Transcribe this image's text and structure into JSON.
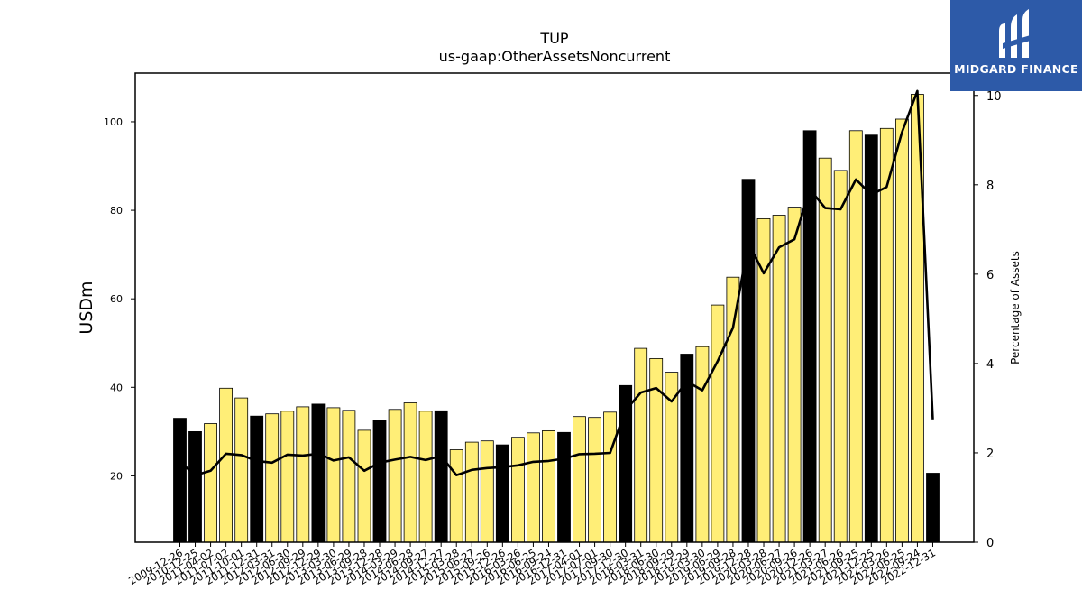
{
  "chart_data": {
    "type": "bar",
    "title": "TUP",
    "subtitle": "us-gaap:OtherAssetsNoncurrent",
    "ylabel": "USDm",
    "y2label": "Percentage of Assets",
    "ylim": [
      5,
      111
    ],
    "y2lim": [
      0,
      10.5
    ],
    "yticks": [
      20,
      40,
      60,
      80,
      100
    ],
    "y2ticks": [
      0,
      2,
      4,
      6,
      8,
      10
    ],
    "categories": [
      "2009-12-26",
      "2010-12-25",
      "2011-04-02",
      "2011-07-02",
      "2011-10-01",
      "2011-12-31",
      "2012-03-31",
      "2012-06-30",
      "2012-09-29",
      "2012-12-29",
      "2013-03-30",
      "2013-06-29",
      "2013-09-28",
      "2013-12-28",
      "2014-03-29",
      "2014-06-28",
      "2014-09-27",
      "2014-12-27",
      "2015-03-28",
      "2015-06-27",
      "2015-09-26",
      "2015-12-26",
      "2016-03-26",
      "2016-06-25",
      "2016-09-24",
      "2016-12-31",
      "2017-04-01",
      "2017-07-01",
      "2017-09-30",
      "2017-12-30",
      "2018-03-31",
      "2018-06-30",
      "2018-09-29",
      "2018-12-29",
      "2019-03-30",
      "2019-06-29",
      "2019-09-28",
      "2019-12-28",
      "2020-03-28",
      "2020-06-27",
      "2020-09-26",
      "2020-12-26",
      "2021-03-27",
      "2021-06-26",
      "2021-09-25",
      "2021-12-25",
      "2022-03-26",
      "2022-06-25",
      "2022-09-24",
      "2022-12-31"
    ],
    "series": [
      {
        "name": "",
        "type": "bar",
        "values": [
          33.0,
          30.0,
          31.8,
          39.8,
          37.6,
          33.5,
          34.0,
          34.6,
          35.6,
          36.2,
          35.4,
          34.8,
          30.3,
          32.5,
          35.0,
          36.5,
          34.6,
          34.7,
          25.9,
          27.6,
          27.9,
          27.0,
          28.7,
          29.7,
          30.2,
          29.8,
          33.4,
          33.2,
          34.4,
          40.4,
          48.8,
          46.5,
          43.4,
          47.5,
          49.2,
          58.6,
          64.9,
          87.0,
          78.1,
          78.9,
          80.7,
          98.0,
          91.8,
          89.0,
          98.0,
          97.0,
          98.5,
          100.6,
          106.2,
          20.6
        ],
        "highlight": [
          true,
          true,
          false,
          false,
          false,
          true,
          false,
          false,
          false,
          true,
          false,
          false,
          false,
          true,
          false,
          false,
          false,
          true,
          false,
          false,
          false,
          true,
          false,
          false,
          false,
          true,
          false,
          false,
          false,
          true,
          false,
          false,
          false,
          true,
          false,
          false,
          false,
          true,
          false,
          false,
          false,
          true,
          false,
          false,
          false,
          true,
          false,
          false,
          false,
          true
        ]
      },
      {
        "name": "",
        "type": "line",
        "axis": "right",
        "values": [
          1.8,
          1.5,
          1.6,
          1.98,
          1.95,
          1.82,
          1.78,
          1.96,
          1.94,
          1.98,
          1.83,
          1.9,
          1.6,
          1.78,
          1.85,
          1.91,
          1.84,
          1.93,
          1.5,
          1.62,
          1.66,
          1.68,
          1.72,
          1.8,
          1.82,
          1.87,
          1.97,
          1.98,
          2.0,
          2.95,
          3.35,
          3.45,
          3.15,
          3.6,
          3.4,
          4.05,
          4.8,
          6.7,
          6.02,
          6.6,
          6.78,
          7.9,
          7.48,
          7.45,
          8.12,
          7.78,
          7.95,
          9.18,
          10.1,
          2.75
        ]
      }
    ],
    "colors": {
      "bar": "#ffee77",
      "bar_highlight": "#000000",
      "line": "#000000"
    }
  },
  "brand": {
    "name": "MIDGARD FINANCE",
    "color": "#2d5aa8"
  }
}
